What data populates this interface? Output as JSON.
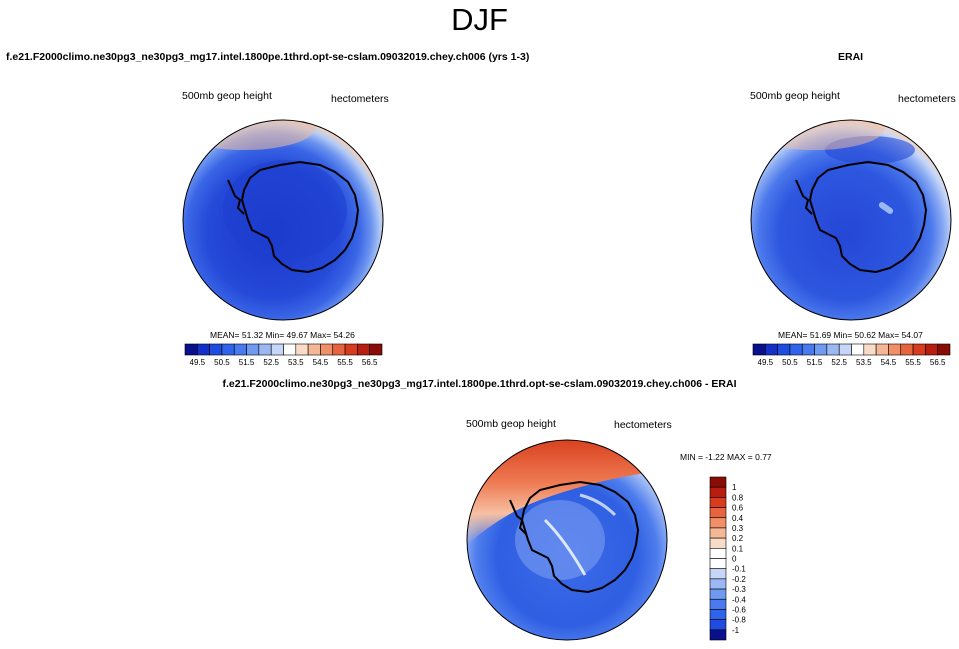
{
  "page": {
    "season": "DJF"
  },
  "panels": {
    "model": {
      "title": "f.e21.F2000climo.ne30pg3_ne30pg3_mg17.intel.1800pe.1thrd.opt-se-cslam.09032019.chey.ch006 (yrs 1-3)",
      "variable": "500mb geop height",
      "units": "hectometers",
      "stats": "MEAN=  51.32  Min=  49.67  Max=  54.26"
    },
    "obs": {
      "title": "ERAI",
      "variable": "500mb geop height",
      "units": "hectometers",
      "stats": "MEAN=  51.69  Min=  50.62  Max=  54.07"
    },
    "diff": {
      "title": "f.e21.F2000climo.ne30pg3_ne30pg3_mg17.intel.1800pe.1thrd.opt-se-cslam.09032019.chey.ch006 - ERAI",
      "variable": "500mb geop height",
      "units": "hectometers",
      "stats": "MIN =  -1.22 MAX =   0.77"
    }
  },
  "chart_data": [
    {
      "type": "heatmap",
      "title": "f.e21.F2000climo.ne30pg3_ne30pg3_mg17.intel.1800pe.1thrd.opt-se-cslam.09032019.chey.ch006 (yrs 1-3)",
      "subtitle": "500mb geop height",
      "units": "hectometers",
      "projection": "south polar stereographic",
      "stats": {
        "mean": 51.32,
        "min": 49.67,
        "max": 54.26
      },
      "colorbar_ticks": [
        "49.5",
        "50.5",
        "51.5",
        "52.5",
        "53.5",
        "54.5",
        "55.5",
        "56.5"
      ],
      "colorbar_colors": [
        "#0a0f8c",
        "#1430c8",
        "#1f4ce0",
        "#2f63ea",
        "#4a7af0",
        "#7099f2",
        "#9bb8f5",
        "#c5d6f8",
        "#ffffff",
        "#f9dcc8",
        "#f5b896",
        "#f08f68",
        "#e8643f",
        "#d83b1e",
        "#b81e0f",
        "#8a0c06"
      ]
    },
    {
      "type": "heatmap",
      "title": "ERAI",
      "subtitle": "500mb geop height",
      "units": "hectometers",
      "projection": "south polar stereographic",
      "stats": {
        "mean": 51.69,
        "min": 50.62,
        "max": 54.07
      },
      "colorbar_ticks": [
        "49.5",
        "50.5",
        "51.5",
        "52.5",
        "53.5",
        "54.5",
        "55.5",
        "56.5"
      ],
      "colorbar_colors": [
        "#0a0f8c",
        "#1430c8",
        "#1f4ce0",
        "#2f63ea",
        "#4a7af0",
        "#7099f2",
        "#9bb8f5",
        "#c5d6f8",
        "#ffffff",
        "#f9dcc8",
        "#f5b896",
        "#f08f68",
        "#e8643f",
        "#d83b1e",
        "#b81e0f",
        "#8a0c06"
      ]
    },
    {
      "type": "heatmap",
      "title": "f.e21.F2000climo.ne30pg3_ne30pg3_mg17.intel.1800pe.1thrd.opt-se-cslam.09032019.chey.ch006 - ERAI",
      "subtitle": "500mb geop height",
      "units": "hectometers",
      "projection": "south polar stereographic",
      "stats": {
        "min": -1.22,
        "max": 0.77
      },
      "colorbar_ticks": [
        "1",
        "0.8",
        "0.6",
        "0.4",
        "0.3",
        "0.2",
        "0.1",
        "0",
        "-0.1",
        "-0.2",
        "-0.3",
        "-0.4",
        "-0.6",
        "-0.8",
        "-1"
      ],
      "colorbar_colors": [
        "#8a0c06",
        "#b81e0f",
        "#d83b1e",
        "#e8643f",
        "#f08f68",
        "#f5b896",
        "#f9dcc8",
        "#ffffff",
        "#ffffff",
        "#c5d6f8",
        "#9bb8f5",
        "#7099f2",
        "#4a7af0",
        "#2f63ea",
        "#1f4ce0",
        "#0a0f8c"
      ]
    }
  ]
}
